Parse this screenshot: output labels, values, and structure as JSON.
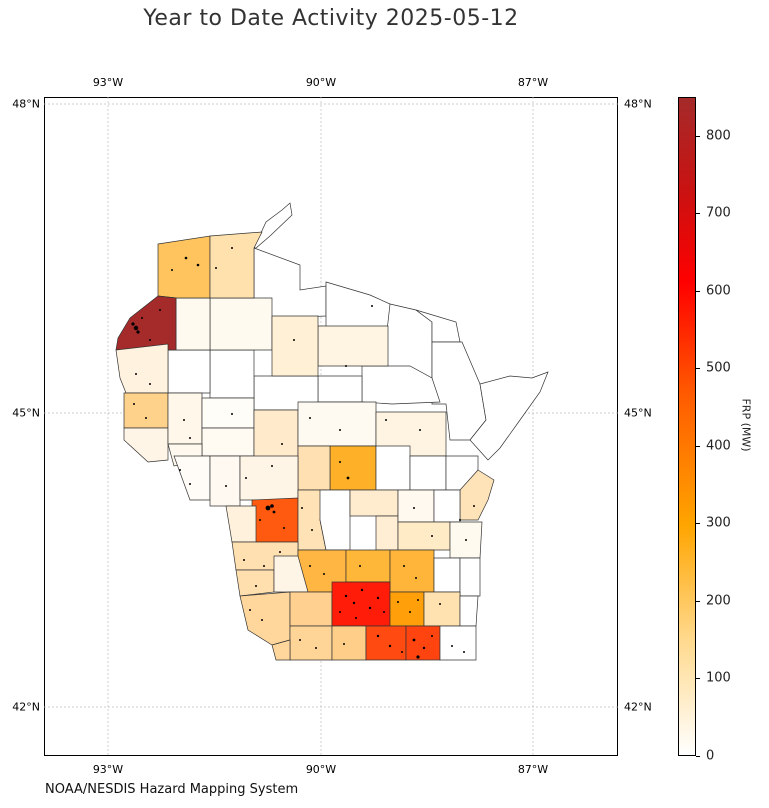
{
  "title": "Year to Date Activity 2025-05-12",
  "credit": "NOAA/NESDIS Hazard Mapping System",
  "map": {
    "lon_ticks": [
      "93°W",
      "90°W",
      "87°W"
    ],
    "lat_ticks": [
      "48°N",
      "45°N",
      "42°N"
    ],
    "region": "Wisconsin counties",
    "fire_detection_marker": "small black dots"
  },
  "colorbar": {
    "label": "FRP (MW)",
    "ticks": [
      "0",
      "100",
      "200",
      "300",
      "400",
      "500",
      "600",
      "700",
      "800"
    ],
    "range": [
      0,
      850
    ],
    "colors": [
      "#ffffff",
      "#ffd88a",
      "#ffa500",
      "#ff5a00",
      "#ff0000",
      "#a52a2a"
    ]
  }
}
